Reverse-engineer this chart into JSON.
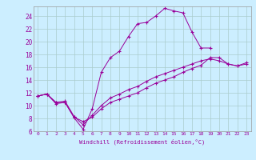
{
  "xlabel": "Windchill (Refroidissement éolien,°C)",
  "bg_color": "#cceeff",
  "line_color": "#990099",
  "grid_color": "#aacccc",
  "xlim": [
    -0.5,
    23.5
  ],
  "ylim": [
    6,
    25.5
  ],
  "xticks": [
    0,
    1,
    2,
    3,
    4,
    5,
    6,
    7,
    8,
    9,
    10,
    11,
    12,
    13,
    14,
    15,
    16,
    17,
    18,
    19,
    20,
    21,
    22,
    23
  ],
  "yticks": [
    6,
    8,
    10,
    12,
    14,
    16,
    18,
    20,
    22,
    24
  ],
  "s1_x": [
    0,
    1,
    2,
    3,
    4,
    5,
    6,
    7,
    8,
    9,
    10,
    11,
    12,
    13,
    14,
    15,
    16,
    17,
    18,
    19
  ],
  "s1_y": [
    11.5,
    11.8,
    10.3,
    10.5,
    8.1,
    6.3,
    9.5,
    15.2,
    17.5,
    18.5,
    20.8,
    22.8,
    23.0,
    24.0,
    25.2,
    24.8,
    24.5,
    21.5,
    19.0,
    19.0
  ],
  "s2_x": [
    0,
    1,
    2,
    3,
    4,
    5,
    6,
    7,
    8,
    9,
    10,
    11,
    12,
    13,
    14,
    15,
    16,
    17,
    18,
    19,
    20,
    21,
    22,
    23
  ],
  "s2_y": [
    11.5,
    11.8,
    10.5,
    10.5,
    8.2,
    7.5,
    8.2,
    9.5,
    10.5,
    11.0,
    11.5,
    12.0,
    12.8,
    13.5,
    14.0,
    14.5,
    15.2,
    15.8,
    16.3,
    17.5,
    17.5,
    16.5,
    16.2,
    16.5
  ],
  "s3_x": [
    0,
    1,
    2,
    3,
    4,
    5,
    6,
    7,
    8,
    9,
    10,
    11,
    12,
    13,
    14,
    15,
    16,
    17,
    18,
    19,
    20,
    21,
    22,
    23
  ],
  "s3_y": [
    11.5,
    11.8,
    10.5,
    10.7,
    8.3,
    7.0,
    8.5,
    10.0,
    11.2,
    11.8,
    12.5,
    13.0,
    13.8,
    14.5,
    15.0,
    15.5,
    16.0,
    16.5,
    17.0,
    17.3,
    17.0,
    16.5,
    16.2,
    16.7
  ]
}
